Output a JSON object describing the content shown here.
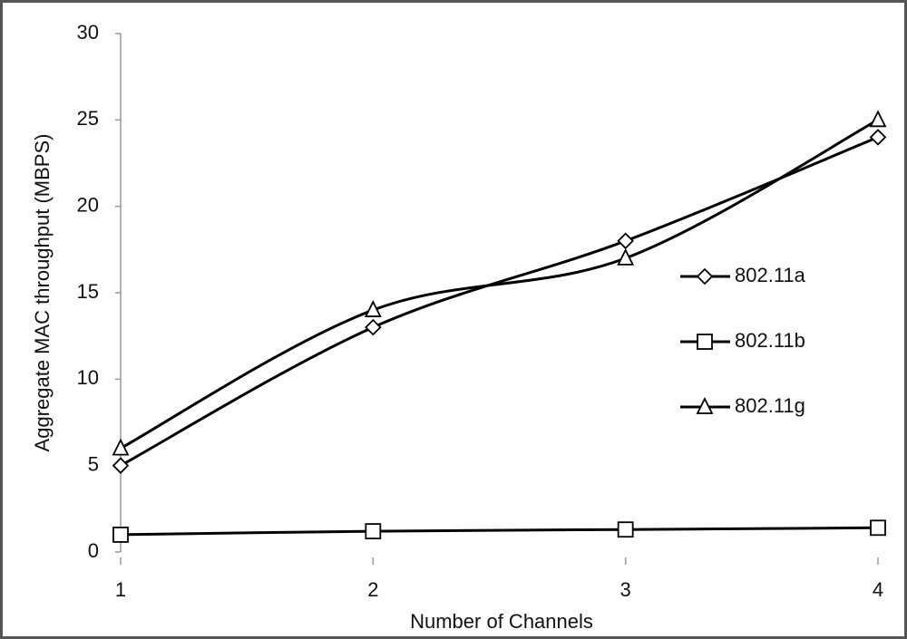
{
  "chart_data": {
    "type": "line",
    "x_label": "Number of Channels",
    "y_label": "Aggregate MAC throughput  (MBPS)",
    "x": [
      1,
      2,
      3,
      4
    ],
    "xlim": [
      1,
      4
    ],
    "xticks": [
      1,
      2,
      3,
      4
    ],
    "ylim": [
      0,
      30
    ],
    "yticks": [
      0,
      5,
      10,
      15,
      20,
      25,
      30
    ],
    "smooth": true,
    "grid": false,
    "legend": "right",
    "series": [
      {
        "name": "802.11a",
        "color": "#000000",
        "marker": "diamond",
        "values": [
          5,
          13,
          18,
          24
        ]
      },
      {
        "name": "802.11b",
        "color": "#000000",
        "marker": "square",
        "values": [
          1,
          1.2,
          1.3,
          1.4
        ]
      },
      {
        "name": "802.11g",
        "color": "#000000",
        "marker": "triangle",
        "values": [
          6,
          14,
          17,
          25
        ]
      }
    ]
  }
}
